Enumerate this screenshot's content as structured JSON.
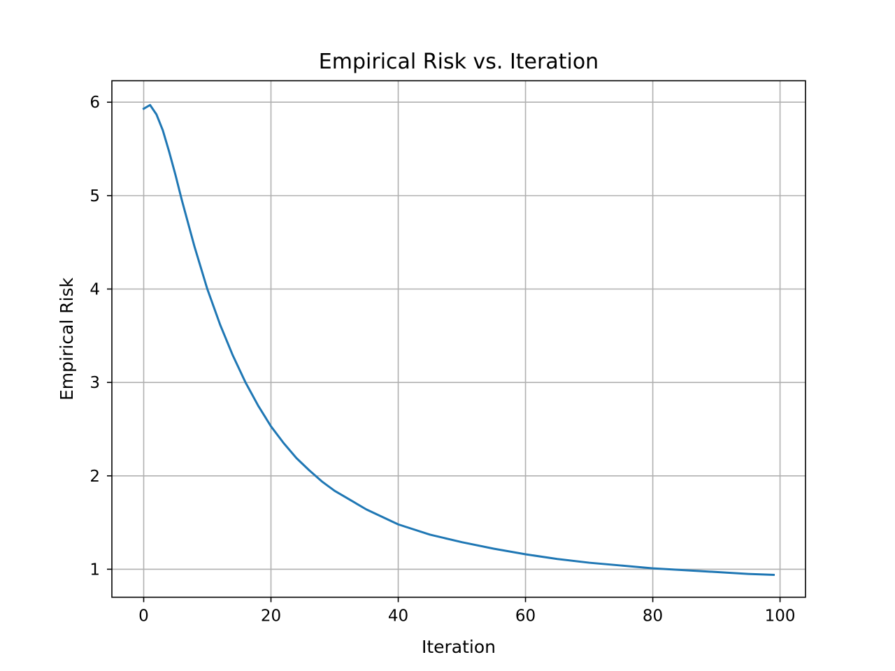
{
  "chart_data": {
    "type": "line",
    "title": "Empirical Risk vs. Iteration",
    "xlabel": "Iteration",
    "ylabel": "Empirical Risk",
    "xlim": [
      -5,
      104
    ],
    "ylim": [
      0.7,
      6.23
    ],
    "xticks": [
      0,
      20,
      40,
      60,
      80,
      100
    ],
    "yticks": [
      1,
      2,
      3,
      4,
      5,
      6
    ],
    "grid": true,
    "color": "#1f77b4",
    "series": [
      {
        "x": [
          0,
          1,
          2,
          3,
          4,
          5,
          6,
          8,
          10,
          12,
          14,
          16,
          18,
          20,
          22,
          24,
          26,
          28,
          30,
          35,
          40,
          45,
          50,
          55,
          60,
          65,
          70,
          75,
          80,
          85,
          90,
          95,
          99
        ],
        "values": [
          5.93,
          5.97,
          5.87,
          5.7,
          5.47,
          5.22,
          4.95,
          4.45,
          4.0,
          3.62,
          3.29,
          3.0,
          2.75,
          2.53,
          2.35,
          2.19,
          2.06,
          1.94,
          1.84,
          1.64,
          1.48,
          1.37,
          1.29,
          1.22,
          1.16,
          1.11,
          1.07,
          1.04,
          1.01,
          0.99,
          0.97,
          0.95,
          0.94
        ]
      }
    ]
  }
}
